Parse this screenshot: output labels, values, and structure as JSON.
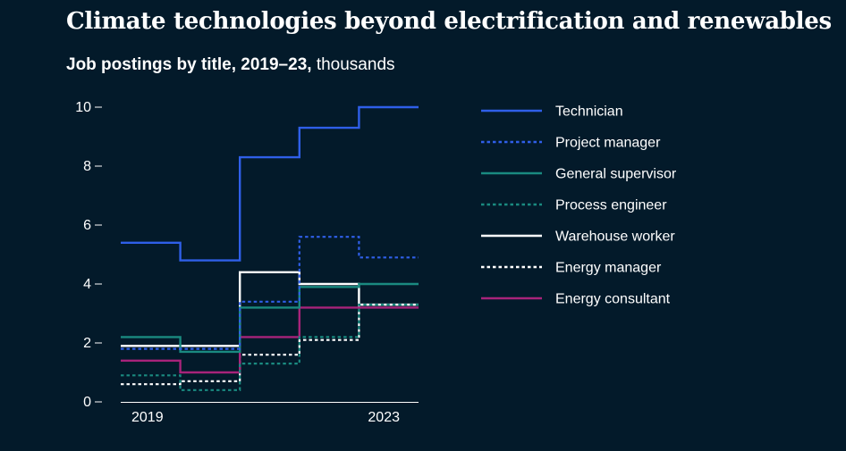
{
  "chart_data": {
    "type": "line",
    "step": true,
    "title": "Climate technologies beyond electrification and renewables",
    "subtitle_main": "Job postings by title, 2019–23,",
    "subtitle_unit": "thousands",
    "xlabel": "",
    "ylabel": "",
    "x": [
      2019,
      2020,
      2021,
      2022,
      2023
    ],
    "x_tick_labels": [
      "2019",
      "2023"
    ],
    "ylim": [
      0,
      10
    ],
    "y_ticks": [
      0,
      2,
      4,
      6,
      8,
      10
    ],
    "y_tick_labels": [
      "0",
      "2",
      "4",
      "6",
      "8",
      "10"
    ],
    "legend_position": "right",
    "series": [
      {
        "name": "Technician",
        "values": [
          5.4,
          4.8,
          8.3,
          9.3,
          10.0
        ],
        "color": "#2f5fe8",
        "dash": "solid"
      },
      {
        "name": "Project manager",
        "values": [
          1.8,
          1.8,
          3.4,
          5.6,
          4.9
        ],
        "color": "#2f5fe8",
        "dash": "dotted"
      },
      {
        "name": "General supervisor",
        "values": [
          2.2,
          1.7,
          3.2,
          3.9,
          4.0
        ],
        "color": "#1a8a80",
        "dash": "solid"
      },
      {
        "name": "Process engineer",
        "values": [
          0.9,
          0.4,
          1.3,
          2.2,
          3.3
        ],
        "color": "#1a8a80",
        "dash": "dotted"
      },
      {
        "name": "Warehouse worker",
        "values": [
          1.9,
          1.9,
          4.4,
          4.0,
          3.3
        ],
        "color": "#ffffff",
        "dash": "solid"
      },
      {
        "name": "Energy manager",
        "values": [
          0.6,
          0.7,
          1.6,
          2.1,
          3.3
        ],
        "color": "#ffffff",
        "dash": "dotted"
      },
      {
        "name": "Energy consultant",
        "values": [
          1.4,
          1.0,
          2.2,
          3.2,
          3.2
        ],
        "color": "#a8237a",
        "dash": "solid"
      }
    ]
  }
}
